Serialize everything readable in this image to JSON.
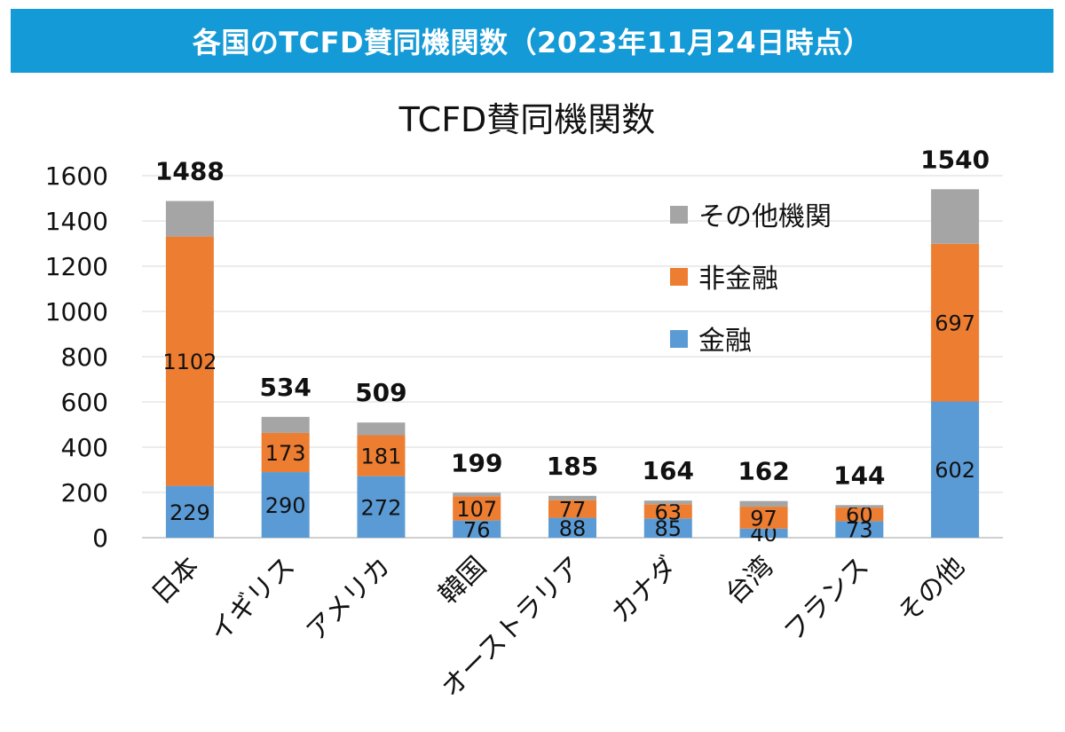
{
  "banner": {
    "title": "各国のTCFD賛同機関数（2023年11月24日時点）"
  },
  "colors": {
    "banner": "#149ad6",
    "finance": "#5b9bd5",
    "nonfinance": "#ed7d31",
    "other": "#a5a5a5",
    "grid": "#d9d9d9"
  },
  "chart_data": {
    "type": "bar",
    "stacked": true,
    "title": "TCFD賛同機関数",
    "xlabel": "",
    "ylabel": "",
    "ylim": [
      0,
      1600
    ],
    "yticks": [
      0,
      200,
      400,
      600,
      800,
      1000,
      1200,
      1400,
      1600
    ],
    "grid": true,
    "legend_position": "top-right",
    "categories": [
      "日本",
      "イギリス",
      "アメリカ",
      "韓国",
      "オーストラリア",
      "カナダ",
      "台湾",
      "フランス",
      "その他"
    ],
    "totals": [
      1488,
      534,
      509,
      199,
      185,
      164,
      162,
      144,
      1540
    ],
    "series": [
      {
        "name": "金融",
        "color": "#5b9bd5",
        "values": [
          229,
          290,
          272,
          76,
          88,
          85,
          40,
          73,
          602
        ]
      },
      {
        "name": "非金融",
        "color": "#ed7d31",
        "values": [
          1102,
          173,
          181,
          107,
          77,
          63,
          97,
          60,
          697
        ]
      },
      {
        "name": "その他機関",
        "color": "#a5a5a5",
        "values": [
          157,
          71,
          56,
          16,
          20,
          16,
          25,
          11,
          241
        ]
      }
    ],
    "legend_order": [
      "その他機関",
      "非金融",
      "金融"
    ]
  }
}
